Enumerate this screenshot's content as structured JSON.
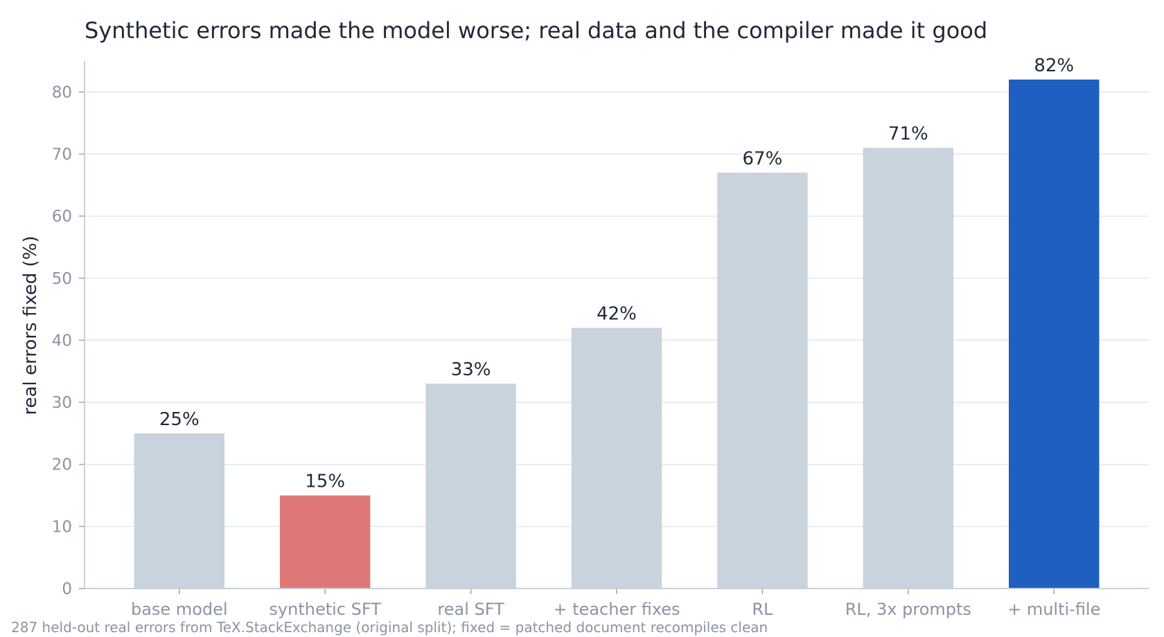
{
  "chart_data": {
    "type": "bar",
    "title": "Synthetic errors made the model worse; real data and the compiler made it good",
    "ylabel": "real errors fixed (%)",
    "xlabel": "",
    "ylim": [
      0,
      85
    ],
    "yticks": [
      0,
      10,
      20,
      30,
      40,
      50,
      60,
      70,
      80
    ],
    "categories": [
      "base model",
      "synthetic SFT",
      "real SFT",
      "+ teacher fixes",
      "RL",
      "RL, 3x prompts",
      "+ multi-file"
    ],
    "values": [
      25,
      15,
      33,
      42,
      67,
      71,
      82
    ],
    "data_labels": [
      "25%",
      "15%",
      "33%",
      "42%",
      "67%",
      "71%",
      "82%"
    ],
    "bar_colors": [
      "#c9d3dd",
      "#de7878",
      "#c9d3dd",
      "#c9d3dd",
      "#c9d3dd",
      "#c9d3dd",
      "#1f5fbf"
    ],
    "grid": true,
    "legend": "none",
    "footnote": "287 held-out real errors from TeX.StackExchange (original split); fixed = patched document recompiles clean"
  }
}
